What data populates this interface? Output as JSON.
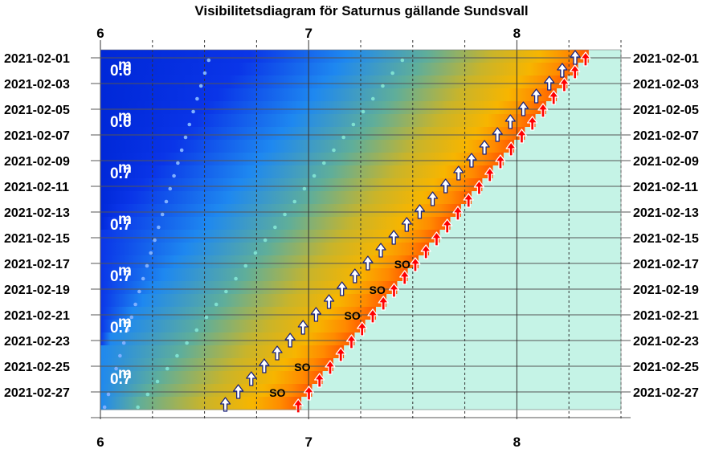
{
  "chart_data": {
    "type": "scatter",
    "title": "Visibilitetsdiagram för Saturnus gällande Sundsvall",
    "x_axis": {
      "range": [
        6,
        8.5
      ],
      "ticks": [
        6,
        7,
        8
      ],
      "tick_labels": [
        "6",
        "7",
        "8"
      ],
      "minor_gridlines": [
        6.25,
        6.5,
        6.75,
        7.25,
        7.5,
        7.75,
        8.25,
        8.5
      ]
    },
    "dates": [
      "2021-02-01",
      "2021-02-03",
      "2021-02-05",
      "2021-02-07",
      "2021-02-09",
      "2021-02-11",
      "2021-02-13",
      "2021-02-15",
      "2021-02-17",
      "2021-02-19",
      "2021-02-21",
      "2021-02-23",
      "2021-02-25",
      "2021-02-27"
    ],
    "labeled_dates_left": [
      "2021-02-01",
      "2021-02-03",
      "2021-02-05",
      "2021-02-07",
      "2021-02-09",
      "2021-02-11",
      "2021-02-13",
      "2021-02-15",
      "2021-02-17",
      "2021-02-19",
      "2021-02-21",
      "2021-02-23",
      "2021-02-25",
      "2021-02-27"
    ],
    "labeled_dates_right": [
      "2021-02-01",
      "2021-02-03",
      "2021-02-05",
      "2021-02-07",
      "2021-02-09",
      "2021-02-11",
      "2021-02-13",
      "2021-02-15",
      "2021-02-17",
      "2021-02-19",
      "2021-02-21",
      "2021-02-23",
      "2021-02-25",
      "2021-02-27"
    ],
    "magnitude_labels": [
      {
        "date": "2021-02-02",
        "text": "0.6"
      },
      {
        "date": "2021-02-06",
        "text": "0.6"
      },
      {
        "date": "2021-02-10",
        "text": "0.7"
      },
      {
        "date": "2021-02-14",
        "text": "0.7"
      },
      {
        "date": "2021-02-18",
        "text": "0.7"
      },
      {
        "date": "2021-02-22",
        "text": "0.7"
      },
      {
        "date": "2021-02-26",
        "text": "0.7"
      }
    ],
    "magnitude_superscript": "m",
    "saturn_rise": {
      "start": 8.28,
      "end": 6.6,
      "marker": "white-arrow"
    },
    "sun_rise": {
      "start": 8.33,
      "end": 6.95,
      "marker": "red-arrow"
    },
    "dot_series_1": {
      "start": 6.52,
      "end": 6.02
    },
    "dot_series_2": {
      "start": 7.45,
      "end": 6.18
    },
    "so_labels": [
      {
        "date": "2021-02-17",
        "text": "SO",
        "x": 7.45
      },
      {
        "date": "2021-02-19",
        "text": "SO",
        "x": 7.33
      },
      {
        "date": "2021-02-21",
        "text": "SO",
        "x": 7.21
      },
      {
        "date": "2021-02-25",
        "text": "SO",
        "x": 6.97
      },
      {
        "date": "2021-02-27",
        "text": "SO",
        "x": 6.85
      }
    ],
    "colors": {
      "night": "#0a2ee6",
      "blue": "#1e90ff",
      "twilight_green": "#8db04e",
      "gold": "#f5b800",
      "orange": "#ff7a00",
      "daylight": "#c5f3e6",
      "rise_arrow": "#ffffff",
      "rise_arrow_outline": "#1a237e",
      "sun_arrow": "#ff0000"
    }
  }
}
